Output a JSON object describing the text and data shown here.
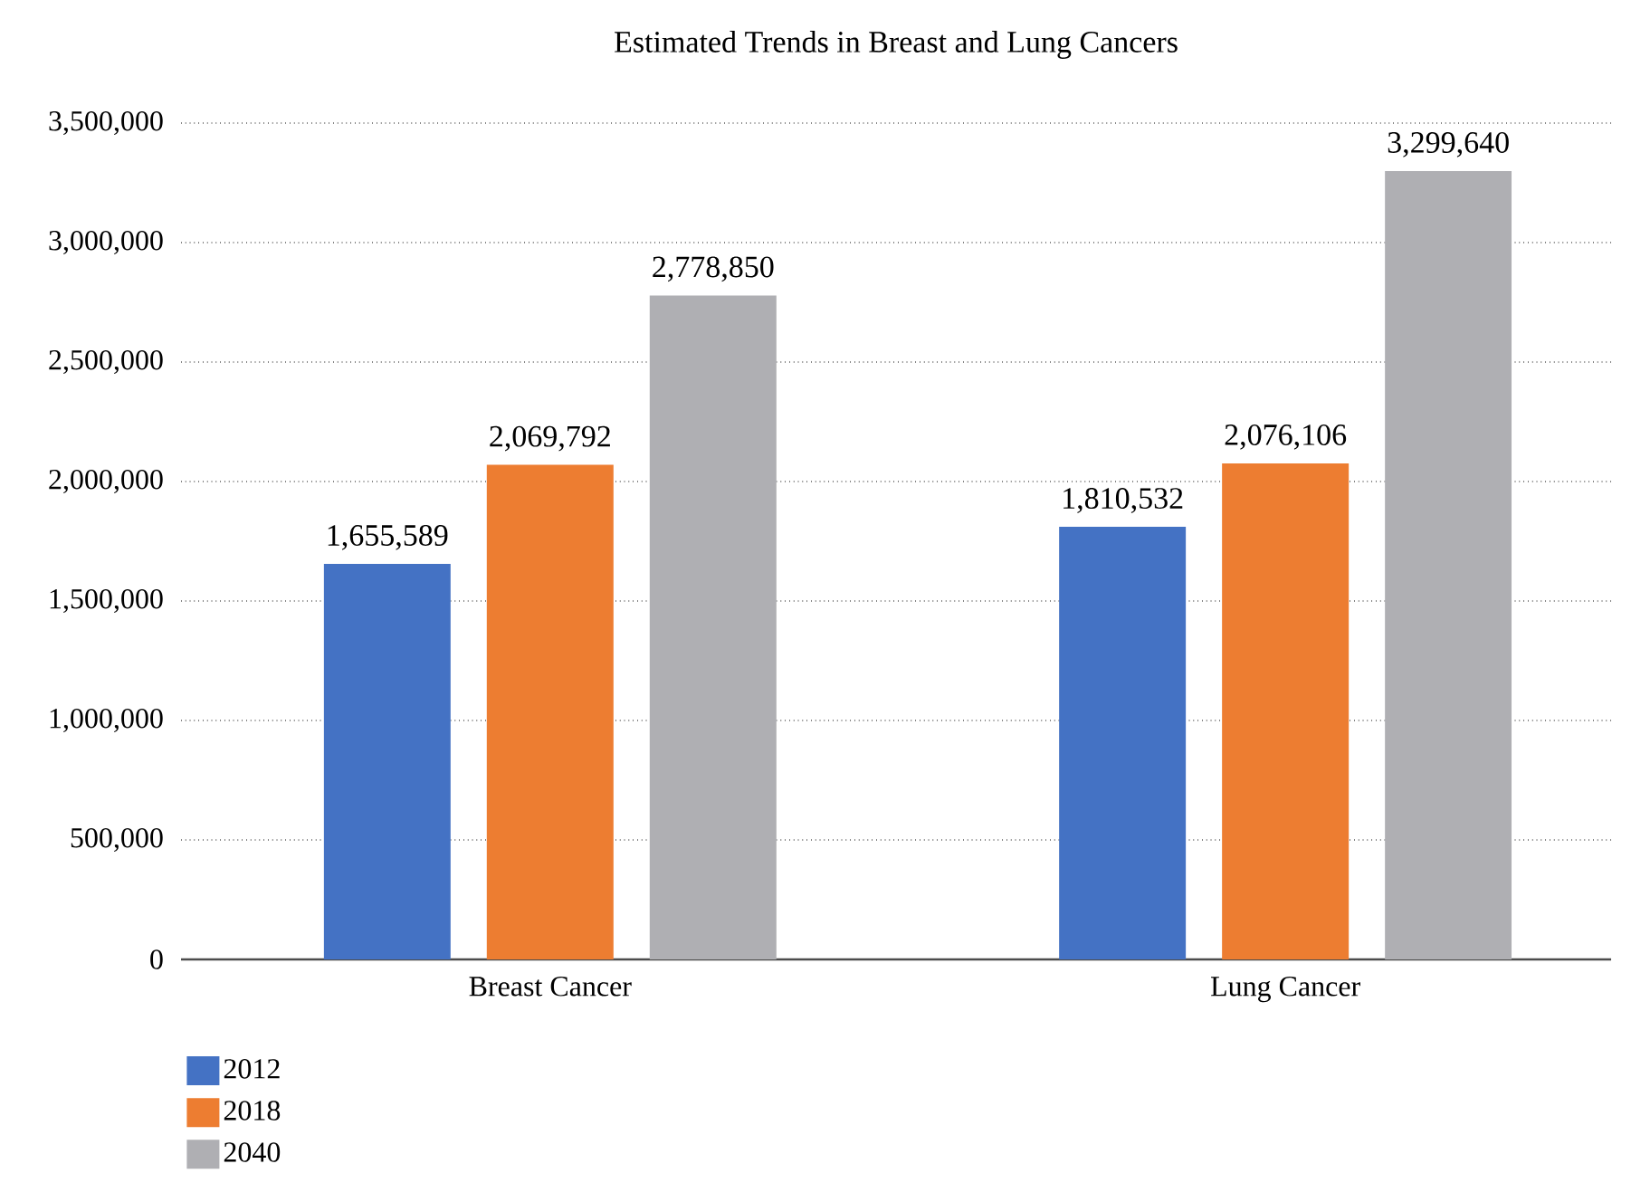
{
  "chart_data": {
    "type": "bar",
    "title": "Estimated Trends in Breast and Lung Cancers",
    "categories": [
      "Breast Cancer",
      "Lung Cancer"
    ],
    "series": [
      {
        "name": "2012",
        "color": "#4472c4",
        "values": [
          1655589,
          1810532
        ],
        "value_labels": [
          "1,655,589",
          "1,810,532"
        ]
      },
      {
        "name": "2018",
        "color": "#ed7d31",
        "values": [
          2069792,
          2076106
        ],
        "value_labels": [
          "2,069,792",
          "2,076,106"
        ]
      },
      {
        "name": "2040",
        "color": "#afafb3",
        "values": [
          2778850,
          3299640
        ],
        "value_labels": [
          "2,778,850",
          "3,299,640"
        ]
      }
    ],
    "ylim": [
      0,
      3500000
    ],
    "yticks": [
      {
        "value": 0,
        "label": "0"
      },
      {
        "value": 500000,
        "label": "500,000"
      },
      {
        "value": 1000000,
        "label": "1,000,000"
      },
      {
        "value": 1500000,
        "label": "1,500,000"
      },
      {
        "value": 2000000,
        "label": "2,000,000"
      },
      {
        "value": 2500000,
        "label": "2,500,000"
      },
      {
        "value": 3000000,
        "label": "3,000,000"
      },
      {
        "value": 3500000,
        "label": "3,500,000"
      }
    ],
    "grid": "y",
    "legend": "bottom left"
  }
}
